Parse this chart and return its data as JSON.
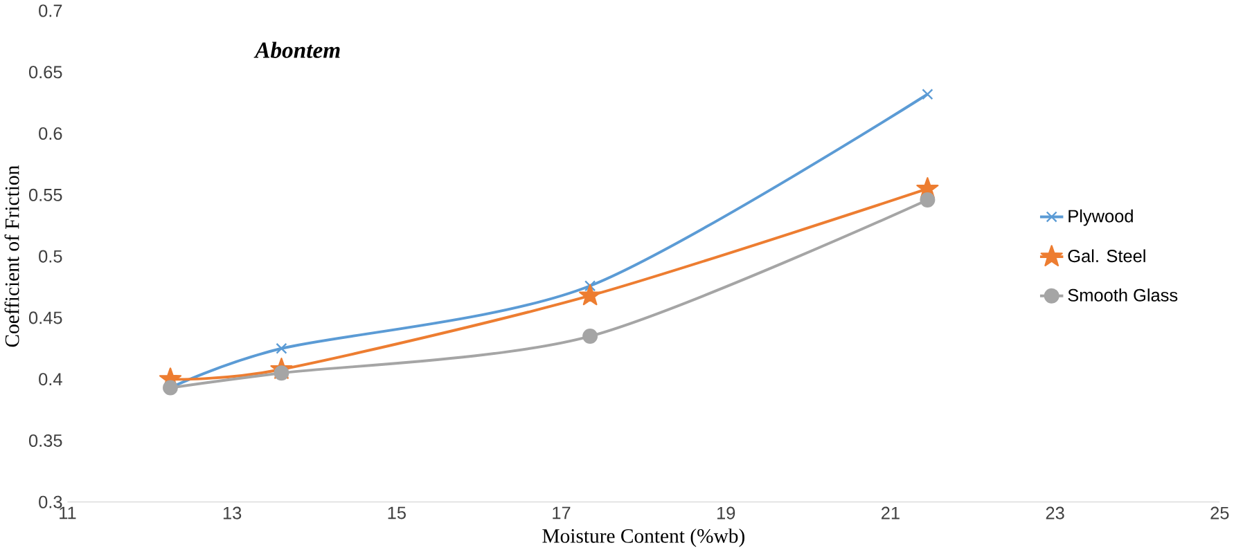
{
  "chart_data": {
    "type": "line",
    "title": "Abontem",
    "xlabel": "Moisture Content  (%wb)",
    "ylabel": "Coefficient  of Friction",
    "x": [
      12.25,
      13.6,
      17.35,
      21.45
    ],
    "series": [
      {
        "name": "Plywood",
        "color": "#5b9bd5",
        "marker": "cross",
        "values": [
          0.393,
          0.425,
          0.476,
          0.632
        ]
      },
      {
        "name": "Gal. Steel",
        "color": "#ed7d31",
        "marker": "star",
        "values": [
          0.4,
          0.408,
          0.468,
          0.555
        ]
      },
      {
        "name": "Smooth Glass",
        "color": "#a5a5a5",
        "marker": "circle",
        "values": [
          0.393,
          0.405,
          0.435,
          0.546
        ]
      }
    ],
    "xlim": [
      11,
      25
    ],
    "xticks": [
      11,
      13,
      15,
      17,
      19,
      21,
      23,
      25
    ],
    "ylim": [
      0.3,
      0.7
    ],
    "yticks": [
      0.3,
      0.35,
      0.4,
      0.45,
      0.5,
      0.55,
      0.6,
      0.65,
      0.7
    ],
    "grid": false,
    "legend": "right",
    "line_style": "solid"
  }
}
